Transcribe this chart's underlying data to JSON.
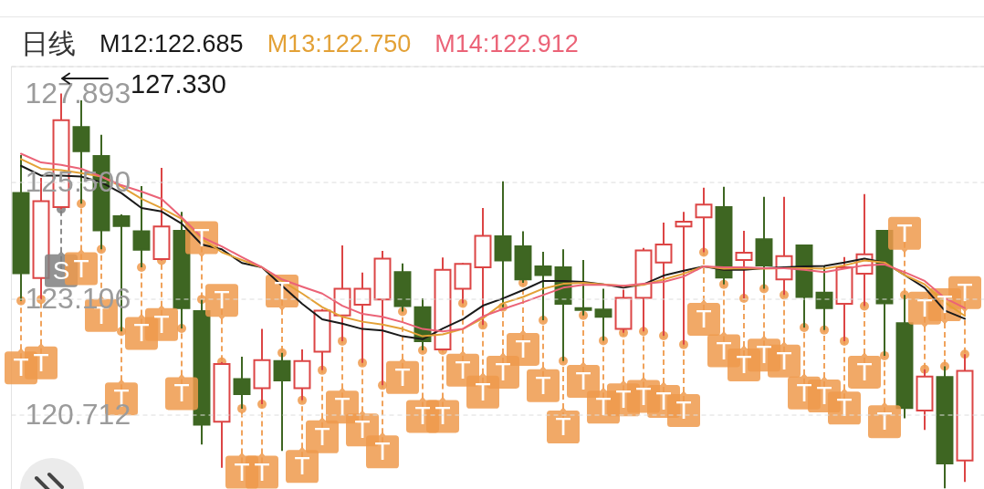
{
  "chart_data": {
    "type": "candlestick",
    "title": "日线",
    "categories": [
      null,
      null,
      null,
      null,
      null,
      null,
      null,
      null,
      null,
      null,
      null,
      null,
      null,
      null,
      null,
      null,
      null,
      null,
      null,
      null,
      null,
      null,
      null,
      null,
      null,
      null,
      null,
      null,
      null,
      null,
      null,
      null,
      null,
      null,
      null,
      null,
      null,
      null,
      null,
      null,
      null,
      null,
      null,
      null,
      null,
      null,
      null,
      null
    ],
    "ylim": [
      119.1,
      127.893
    ],
    "yticks": [
      127.893,
      {
        "value": 125.5,
        "label": "125.500"
      },
      123.106,
      120.712
    ],
    "grid": "y",
    "tick_labels": "y",
    "legend": "top left",
    "annotations": [
      "127.330"
    ],
    "series": [
      {
        "type": "candlestick",
        "ohlc": [
          [
            125.28,
            126.06,
            123.06,
            123.63
          ],
          [
            123.53,
            125.59,
            123.09,
            125.11
          ],
          [
            124.99,
            127.33,
            124.95,
            126.78
          ],
          [
            126.64,
            127.19,
            125.06,
            126.14
          ],
          [
            126.04,
            126.48,
            124.12,
            124.51
          ],
          [
            124.8,
            124.84,
            122.43,
            124.6
          ],
          [
            124.49,
            125.42,
            123.75,
            124.11
          ],
          [
            123.92,
            125.8,
            123.89,
            124.59
          ],
          [
            124.5,
            124.89,
            122.49,
            122.91
          ],
          [
            122.85,
            123.09,
            120.1,
            120.51
          ],
          [
            120.57,
            121.8,
            119.62,
            121.76
          ],
          [
            121.45,
            121.91,
            120.84,
            121.14
          ],
          [
            121.26,
            122.48,
            120.93,
            121.84
          ],
          [
            121.82,
            121.99,
            119.97,
            121.42
          ],
          [
            121.26,
            122.06,
            121.01,
            121.82
          ],
          [
            122.01,
            122.89,
            121.63,
            122.86
          ],
          [
            122.76,
            124.2,
            122.23,
            123.31
          ],
          [
            122.98,
            123.64,
            121.78,
            123.31
          ],
          [
            123.09,
            124.09,
            121.32,
            123.93
          ],
          [
            123.65,
            123.83,
            122.84,
            122.95
          ],
          [
            122.93,
            123.11,
            122.04,
            122.23
          ],
          [
            122.06,
            123.95,
            122.04,
            123.7
          ],
          [
            123.31,
            123.84,
            123.01,
            123.82
          ],
          [
            123.75,
            124.97,
            122.56,
            124.4
          ],
          [
            124.39,
            125.52,
            122.93,
            123.89
          ],
          [
            124.18,
            124.49,
            123.43,
            123.5
          ],
          [
            123.77,
            124.07,
            122.66,
            123.59
          ],
          [
            123.75,
            124.12,
            121.82,
            123.0
          ],
          [
            122.91,
            123.9,
            122.76,
            122.87
          ],
          [
            122.88,
            123.31,
            122.24,
            122.73
          ],
          [
            122.48,
            123.29,
            122.4,
            123.12
          ],
          [
            123.12,
            124.15,
            122.43,
            124.1
          ],
          [
            123.85,
            124.67,
            122.34,
            124.22
          ],
          [
            124.59,
            124.89,
            122.16,
            124.69
          ],
          [
            124.78,
            125.39,
            124.06,
            125.04
          ],
          [
            124.99,
            125.41,
            123.4,
            123.54
          ],
          [
            123.9,
            124.5,
            123.11,
            124.05
          ],
          [
            124.33,
            125.2,
            123.31,
            123.79
          ],
          [
            123.5,
            125.2,
            123.18,
            123.98
          ],
          [
            124.2,
            124.22,
            122.51,
            123.14
          ],
          [
            123.23,
            123.78,
            122.46,
            122.91
          ],
          [
            123.0,
            123.96,
            122.23,
            123.75
          ],
          [
            123.62,
            125.26,
            122.95,
            124.02
          ],
          [
            124.5,
            124.52,
            121.93,
            123.01
          ],
          [
            122.6,
            123.18,
            120.64,
            120.85
          ],
          [
            120.8,
            121.65,
            120.4,
            121.5
          ],
          [
            121.49,
            121.71,
            119.2,
            119.71
          ],
          [
            119.77,
            121.96,
            119.33,
            121.62
          ]
        ],
        "colors": [
          "#3e6622",
          "#dc4545",
          "#dc4545",
          "#3e6622",
          "#3e6622",
          "#3e6622",
          "#3e6622",
          "#dc4545",
          "#3e6622",
          "#3e6622",
          "#dc4545",
          "#3e6622",
          "#dc4545",
          "#3e6622",
          "#dc4545",
          "#dc4545",
          "#dc4545",
          "#dc4545",
          "#dc4545",
          "#3e6622",
          "#3e6622",
          "#dc4545",
          "#dc4545",
          "#dc4545",
          "#3e6622",
          "#3e6622",
          "#3e6622",
          "#3e6622",
          "#3e6622",
          "#3e6622",
          "#dc4545",
          "#dc4545",
          "#dc4545",
          "#dc4545",
          "#dc4545",
          "#3e6622",
          "#dc4545",
          "#3e6622",
          "#dc4545",
          "#3e6622",
          "#3e6622",
          "#dc4545",
          "#dc4545",
          "#3e6622",
          "#3e6622",
          "#dc4545",
          "#3e6622",
          "#dc4545"
        ]
      },
      {
        "type": "line",
        "name": "M12:122.685",
        "color": "#1a1a1a",
        "values": [
          125.84,
          125.64,
          125.64,
          125.62,
          125.5,
          125.28,
          124.97,
          124.9,
          124.65,
          124.22,
          124.12,
          123.84,
          123.75,
          123.37,
          123.0,
          122.68,
          122.59,
          122.48,
          122.45,
          122.33,
          122.27,
          122.49,
          122.68,
          122.96,
          123.11,
          123.28,
          123.47,
          123.47,
          123.45,
          123.4,
          123.33,
          123.4,
          123.58,
          123.68,
          123.77,
          123.7,
          123.7,
          123.73,
          123.75,
          123.77,
          123.78,
          123.85,
          123.93,
          123.85,
          123.59,
          123.33,
          122.86,
          122.69
        ]
      },
      {
        "type": "line",
        "name": "M13:122.750",
        "color": "#e3a136",
        "values": [
          125.98,
          125.78,
          125.75,
          125.69,
          125.62,
          125.41,
          125.16,
          124.97,
          124.75,
          124.34,
          124.06,
          123.9,
          123.75,
          123.47,
          123.21,
          122.93,
          122.73,
          122.63,
          122.57,
          122.48,
          122.33,
          122.37,
          122.48,
          122.7,
          123.01,
          123.14,
          123.31,
          123.41,
          123.43,
          123.4,
          123.37,
          123.39,
          123.5,
          123.62,
          123.77,
          123.72,
          123.73,
          123.72,
          123.73,
          123.73,
          123.72,
          123.79,
          123.89,
          123.85,
          123.59,
          123.4,
          123.03,
          122.75
        ]
      },
      {
        "type": "line",
        "name": "M14:122.912",
        "color": "#eb6377",
        "values": [
          126.09,
          125.91,
          125.86,
          125.78,
          125.62,
          125.44,
          125.31,
          125.16,
          124.78,
          124.37,
          124.18,
          123.96,
          123.75,
          123.5,
          123.35,
          123.21,
          122.96,
          122.79,
          122.73,
          122.62,
          122.48,
          122.43,
          122.48,
          122.74,
          122.89,
          123.03,
          123.18,
          123.33,
          123.39,
          123.39,
          123.37,
          123.41,
          123.45,
          123.56,
          123.77,
          123.75,
          123.75,
          123.73,
          123.73,
          123.7,
          123.65,
          123.72,
          123.79,
          123.81,
          123.65,
          123.47,
          123.12,
          122.91
        ]
      },
      {
        "type": "scatter",
        "marker": "square",
        "values": [
          121.68,
          121.78,
          123.68,
          123.72,
          122.76,
          121.04,
          122.39,
          122.57,
          121.15,
          124.36,
          123.07,
          119.53,
          119.53,
          123.26,
          119.65,
          120.26,
          120.87,
          120.4,
          119.95,
          121.48,
          120.68,
          120.68,
          121.63,
          121.18,
          121.59,
          122.06,
          121.31,
          120.46,
          121.4,
          120.87,
          121.02,
          121.09,
          120.99,
          120.8,
          122.68,
          122.03,
          121.74,
          121.94,
          121.82,
          121.16,
          121.1,
          120.85,
          121.59,
          120.57,
          124.45,
          122.91,
          122.98,
          123.23
        ],
        "value_labels": [
          "T",
          "T",
          "S",
          "T",
          "T",
          "T",
          "T",
          "T",
          "T",
          "T",
          "T",
          "T",
          "T",
          "T",
          "T",
          "T",
          "T",
          "T",
          "T",
          "T",
          "T",
          "T",
          "T",
          "T",
          "T",
          "T",
          "T",
          "T",
          "T",
          "T",
          "T",
          "T",
          "T",
          "T",
          "T",
          "T",
          "T",
          "T",
          "T",
          "T",
          "T",
          "T",
          "T",
          "T",
          "T",
          "T",
          "T",
          "T"
        ],
        "colors": [
          "#ef9a4c",
          "#ef9a4c",
          "#808080",
          "#ef9a4c",
          "#ef9a4c",
          "#ef9a4c",
          "#ef9a4c",
          "#ef9a4c",
          "#ef9a4c",
          "#ef9a4c",
          "#ef9a4c",
          "#ef9a4c",
          "#ef9a4c",
          "#ef9a4c",
          "#ef9a4c",
          "#ef9a4c",
          "#ef9a4c",
          "#ef9a4c",
          "#ef9a4c",
          "#ef9a4c",
          "#ef9a4c",
          "#ef9a4c",
          "#ef9a4c",
          "#ef9a4c",
          "#ef9a4c",
          "#ef9a4c",
          "#ef9a4c",
          "#ef9a4c",
          "#ef9a4c",
          "#ef9a4c",
          "#ef9a4c",
          "#ef9a4c",
          "#ef9a4c",
          "#ef9a4c",
          "#ef9a4c",
          "#ef9a4c",
          "#ef9a4c",
          "#ef9a4c",
          "#ef9a4c",
          "#ef9a4c",
          "#ef9a4c",
          "#ef9a4c",
          "#ef9a4c",
          "#ef9a4c",
          "#ef9a4c",
          "#ef9a4c",
          "#ef9a4c",
          "#ef9a4c"
        ]
      },
      {
        "type": "scatter",
        "values": [
          123.06,
          123.09,
          124.95,
          125.06,
          124.12,
          122.43,
          123.75,
          123.89,
          122.49,
          123.09,
          121.8,
          120.84,
          120.93,
          121.99,
          121.01,
          121.63,
          122.23,
          121.78,
          121.32,
          122.84,
          122.04,
          122.04,
          123.01,
          122.56,
          122.93,
          123.43,
          122.66,
          121.82,
          122.76,
          122.24,
          122.4,
          122.43,
          122.34,
          122.16,
          124.06,
          123.4,
          123.11,
          123.31,
          123.18,
          122.51,
          122.46,
          122.23,
          122.95,
          121.93,
          123.18,
          121.65,
          121.71,
          121.96
        ],
        "colors": [
          "#ef9a4c",
          "#ef9a4c",
          "#808080",
          "#ef9a4c",
          "#ef9a4c",
          "#ef9a4c",
          "#ef9a4c",
          "#ef9a4c",
          "#ef9a4c",
          "#ef9a4c",
          "#ef9a4c",
          "#ef9a4c",
          "#ef9a4c",
          "#ef9a4c",
          "#ef9a4c",
          "#ef9a4c",
          "#ef9a4c",
          "#ef9a4c",
          "#ef9a4c",
          "#ef9a4c",
          "#ef9a4c",
          "#ef9a4c",
          "#ef9a4c",
          "#ef9a4c",
          "#ef9a4c",
          "#ef9a4c",
          "#ef9a4c",
          "#ef9a4c",
          "#ef9a4c",
          "#ef9a4c",
          "#ef9a4c",
          "#ef9a4c",
          "#ef9a4c",
          "#ef9a4c",
          "#ef9a4c",
          "#ef9a4c",
          "#ef9a4c",
          "#ef9a4c",
          "#ef9a4c",
          "#ef9a4c",
          "#ef9a4c",
          "#ef9a4c",
          "#ef9a4c",
          "#ef9a4c",
          "#ef9a4c",
          "#ef9a4c",
          "#ef9a4c",
          "#ef9a4c"
        ]
      }
    ]
  }
}
